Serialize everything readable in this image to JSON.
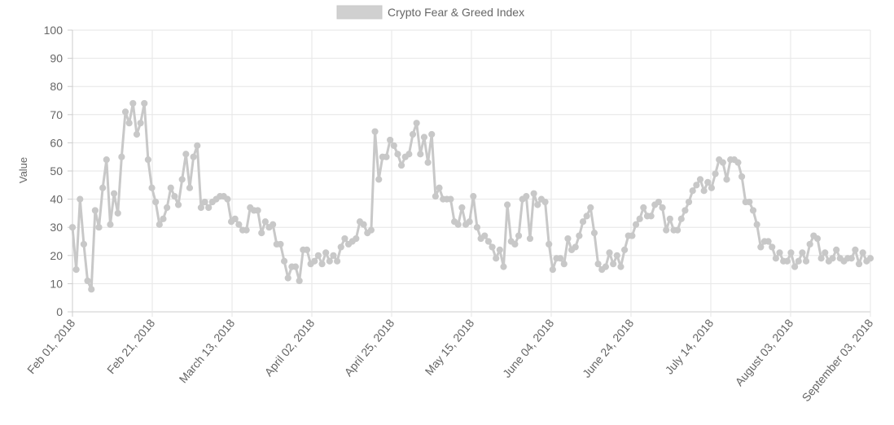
{
  "chart_data": {
    "type": "line",
    "legend": {
      "label": "Crypto Fear & Greed Index",
      "placement": "top-center",
      "swatch_color": "#d0d0d0"
    },
    "ylabel": "Value",
    "xlabel": "",
    "ylim": [
      0,
      100
    ],
    "yticks": [
      0,
      10,
      20,
      30,
      40,
      50,
      60,
      70,
      80,
      90,
      100
    ],
    "xticks": [
      "Feb 01, 2018",
      "Feb 21, 2018",
      "March 13, 2018",
      "April 02, 2018",
      "April 25, 2018",
      "May 15, 2018",
      "June 04, 2018",
      "June 24, 2018",
      "July 14, 2018",
      "August 03, 2018",
      "September 03, 2018"
    ],
    "grid": true,
    "line_color": "#c8c8c8",
    "series": [
      {
        "name": "Crypto Fear & Greed Index",
        "values": [
          30,
          15,
          40,
          24,
          11,
          8,
          36,
          30,
          44,
          54,
          31,
          42,
          35,
          55,
          71,
          67,
          74,
          63,
          67,
          74,
          54,
          44,
          39,
          31,
          33,
          37,
          44,
          41,
          38,
          47,
          56,
          44,
          55,
          59,
          37,
          39,
          37,
          39,
          40,
          41,
          41,
          40,
          32,
          33,
          31,
          29,
          29,
          37,
          36,
          36,
          28,
          32,
          30,
          31,
          24,
          24,
          18,
          12,
          16,
          16,
          11,
          22,
          22,
          17,
          18,
          20,
          17,
          21,
          18,
          20,
          18,
          23,
          26,
          24,
          25,
          26,
          32,
          31,
          28,
          29,
          64,
          47,
          55,
          55,
          61,
          59,
          56,
          52,
          55,
          56,
          63,
          67,
          56,
          62,
          53,
          63,
          41,
          44,
          40,
          40,
          40,
          32,
          31,
          37,
          31,
          32,
          41,
          30,
          26,
          27,
          25,
          23,
          19,
          22,
          16,
          38,
          25,
          24,
          27,
          40,
          41,
          26,
          42,
          38,
          40,
          39,
          24,
          15,
          19,
          19,
          17,
          26,
          22,
          23,
          27,
          32,
          34,
          37,
          28,
          17,
          15,
          16,
          21,
          17,
          20,
          16,
          22,
          27,
          27,
          31,
          33,
          37,
          34,
          34,
          38,
          39,
          37,
          29,
          33,
          29,
          29,
          33,
          36,
          39,
          43,
          45,
          47,
          43,
          46,
          44,
          49,
          54,
          53,
          47,
          54,
          54,
          53,
          48,
          39,
          39,
          36,
          31,
          23,
          25,
          25,
          23,
          19,
          21,
          18,
          18,
          21,
          16,
          18,
          21,
          18,
          24,
          27,
          26,
          19,
          21,
          18,
          19,
          22,
          19,
          18,
          19,
          19,
          22,
          17,
          21,
          18,
          19
        ]
      }
    ]
  }
}
